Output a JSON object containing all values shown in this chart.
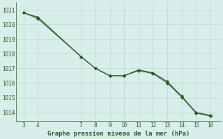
{
  "series1_x": [
    3,
    4,
    7,
    8,
    9,
    10,
    11,
    12,
    13,
    14,
    15,
    16
  ],
  "series1_y": [
    1020.8,
    1020.5,
    1017.8,
    1017.0,
    1016.5,
    1016.5,
    1016.9,
    1016.7,
    1016.1,
    1015.1,
    1014.0,
    1013.8
  ],
  "series2_x": [
    3,
    4,
    7,
    8,
    9,
    10,
    11,
    12,
    13,
    14,
    15,
    16
  ],
  "series2_y": [
    1020.8,
    1020.4,
    1017.8,
    1017.0,
    1016.5,
    1016.5,
    1016.85,
    1016.65,
    1016.0,
    1015.05,
    1013.95,
    1013.75
  ],
  "line_color": "#2d5a27",
  "bg_color": "#d8eeea",
  "grid_color": "#b8d8d0",
  "xlabel": "Graphe pression niveau de la mer (hPa)",
  "xlabel_color": "#2d5a27",
  "ylabel_ticks": [
    1014,
    1015,
    1016,
    1017,
    1018,
    1019,
    1020,
    1021
  ],
  "xticks": [
    3,
    4,
    7,
    8,
    9,
    10,
    11,
    12,
    13,
    14,
    15,
    16
  ],
  "xlim": [
    2.5,
    16.7
  ],
  "ylim": [
    1013.4,
    1021.5
  ],
  "tick_fontsize": 5.5,
  "xlabel_fontsize": 6.5
}
